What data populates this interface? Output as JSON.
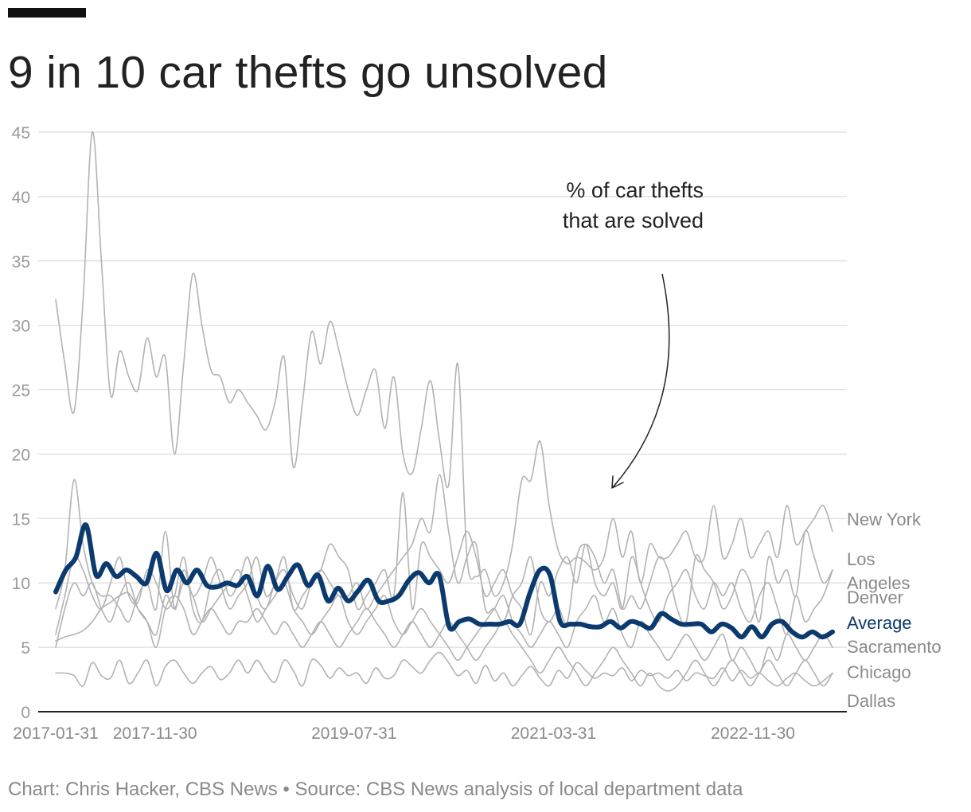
{
  "title": "9 in 10 car thefts go unsolved",
  "footer": "Chart: Chris Hacker, CBS News • Source: CBS News analysis of local department data",
  "chart_data": {
    "type": "line",
    "title": "9 in 10 car thefts go unsolved",
    "xlabel": "",
    "ylabel": "",
    "ylim": [
      0,
      45
    ],
    "yticks": [
      0,
      5,
      10,
      15,
      20,
      25,
      30,
      35,
      40,
      45
    ],
    "xticks": [
      "2017-01-31",
      "2017-11-30",
      "2019-07-31",
      "2021-03-31",
      "2022-11-30"
    ],
    "x_start": "2017-01-31",
    "x_end": "2023-07-31",
    "grid": true,
    "annotation": "% of car thefts that are solved",
    "colors": {
      "city": "#b3b3b3",
      "average": "#0b3a6e",
      "grid": "#dcdcdc",
      "axis": "#222222",
      "label": "#8a8a8a"
    },
    "series": [
      {
        "name": "New York",
        "values": [
          32,
          27,
          23.3,
          32,
          45,
          35,
          24.6,
          28,
          26,
          25,
          29,
          26,
          27.5,
          20,
          27,
          34,
          30,
          26.5,
          26,
          24,
          25,
          24,
          23,
          21.9,
          24,
          27.5,
          19,
          24,
          29.5,
          27,
          30.3,
          28,
          25,
          23,
          25,
          26.5,
          22,
          26,
          20,
          18.5,
          22,
          25.7,
          21,
          17.6,
          27,
          12,
          10.5,
          11,
          9,
          10,
          13,
          18,
          18,
          21,
          16,
          12.5,
          11.5,
          12,
          11.6,
          11,
          12,
          15,
          12,
          14,
          10,
          13,
          12,
          12,
          13,
          14,
          12,
          12,
          16,
          12,
          13,
          15,
          12,
          13,
          14,
          12,
          16,
          13,
          14,
          15,
          16,
          14
        ]
      },
      {
        "name": "Los Angeles",
        "values": [
          6,
          9,
          12,
          11,
          9,
          8,
          10,
          12,
          9,
          8.5,
          11,
          10,
          8,
          9,
          12,
          8,
          7,
          10,
          11,
          9,
          10,
          12,
          9,
          8,
          10,
          11,
          9,
          8,
          10,
          11,
          10,
          9,
          9,
          10,
          8,
          9,
          10,
          11,
          12,
          13,
          15,
          14,
          18.4,
          14,
          10,
          12,
          13,
          8,
          8,
          7,
          9,
          10,
          12,
          8,
          7,
          8,
          7,
          12,
          13,
          12,
          10,
          11,
          8,
          9,
          8,
          10,
          12,
          11,
          8,
          7,
          12,
          11,
          10,
          8,
          9,
          11,
          10,
          7,
          12,
          10,
          11,
          9,
          14,
          12,
          10,
          11
        ]
      },
      {
        "name": "Denver",
        "values": [
          8,
          11,
          18,
          13,
          10,
          9,
          9,
          8,
          7,
          9,
          10,
          8,
          14,
          8,
          11,
          9,
          10,
          12,
          10,
          8,
          9,
          10,
          12,
          9,
          10,
          12,
          8,
          9,
          10,
          11,
          13,
          12,
          11,
          8,
          9,
          10,
          11,
          9,
          17,
          8,
          13,
          12,
          11,
          10,
          12,
          14,
          12,
          9,
          10,
          11,
          9,
          8,
          6,
          10,
          9,
          11,
          12,
          10,
          13,
          10,
          9,
          10,
          8,
          12,
          10,
          8,
          7,
          9,
          10,
          11,
          9,
          8,
          10,
          9,
          10,
          8,
          7,
          9,
          10,
          8,
          6,
          9,
          7,
          8,
          9,
          11
        ]
      },
      {
        "name": "Sacramento",
        "values": [
          5,
          8,
          10,
          9,
          10,
          8,
          7,
          9,
          10,
          8,
          7,
          6,
          9,
          8,
          10,
          9,
          7,
          8,
          9,
          10,
          11,
          9,
          7,
          8,
          9,
          10,
          8,
          7,
          6,
          7,
          8,
          9,
          7,
          6,
          7,
          8,
          9,
          7,
          6,
          7,
          8,
          7,
          6,
          5,
          4,
          5,
          6,
          7,
          8,
          9,
          7,
          6,
          5,
          6,
          7,
          6,
          5,
          7,
          8,
          9,
          7,
          8,
          6,
          5,
          7,
          6,
          5,
          4,
          5,
          6,
          5,
          4,
          5,
          6,
          4,
          5,
          4,
          3,
          5,
          4,
          6,
          5,
          4,
          5,
          6,
          5
        ]
      },
      {
        "name": "Chicago",
        "values": [
          5.5,
          5.8,
          6,
          6.3,
          7,
          8,
          8.5,
          9,
          9.2,
          8,
          7,
          5,
          8,
          9,
          8,
          6,
          7,
          8,
          7,
          6,
          7,
          7,
          8,
          7,
          6,
          7,
          6,
          5,
          6,
          7,
          6,
          5,
          6,
          7,
          8,
          7,
          6,
          5,
          6,
          7,
          6,
          5,
          6,
          7,
          6,
          5,
          4,
          5,
          6,
          7,
          6,
          5,
          4,
          3,
          4,
          5,
          4,
          3,
          2,
          3,
          4,
          5,
          4,
          3,
          2,
          3,
          2,
          1.6,
          2,
          3,
          4,
          3,
          2,
          3,
          4,
          3,
          2,
          3,
          4,
          3,
          2,
          3,
          4,
          3,
          2,
          3
        ]
      },
      {
        "name": "Dallas",
        "values": [
          3,
          3,
          2.8,
          2,
          3.8,
          2.8,
          2.6,
          4,
          2.2,
          3,
          4,
          2,
          3.5,
          4,
          3,
          2.2,
          3,
          3.5,
          2.5,
          3,
          4,
          3,
          4,
          3,
          2.3,
          4,
          3.2,
          2,
          4,
          3.6,
          2.6,
          3.4,
          2.8,
          3,
          2.2,
          3.4,
          2.6,
          2.8,
          4,
          3.5,
          3,
          4,
          4.6,
          3.8,
          2.8,
          3.2,
          2.2,
          3.6,
          2.4,
          3,
          2,
          2.8,
          3.5,
          2.6,
          2,
          3.2,
          2.6,
          3.8,
          3.2,
          2.6,
          3,
          2.8,
          3.4,
          2.4,
          3.2,
          2.8,
          3,
          2.6,
          3.2,
          2.4,
          3,
          2.8,
          2.6,
          3.4,
          2.4,
          3.2,
          2.6,
          3,
          2.4,
          2,
          2.6,
          3,
          2.4,
          2,
          2.4,
          3
        ]
      },
      {
        "name": "Average",
        "values": [
          9.3,
          11,
          12,
          14.5,
          10.6,
          11.5,
          10.5,
          11,
          10.5,
          10,
          12.3,
          9.4,
          11,
          10,
          11,
          9.8,
          9.7,
          10,
          9.8,
          10.5,
          9,
          11.3,
          9.5,
          10.5,
          11.4,
          9.8,
          10.6,
          8.6,
          9.6,
          8.6,
          9.4,
          10.2,
          8.6,
          8.6,
          9,
          10.2,
          10.8,
          10,
          10.6,
          6.6,
          7,
          7.2,
          6.8,
          6.8,
          6.8,
          7,
          6.8,
          9.2,
          11,
          10.6,
          7,
          6.8,
          6.8,
          6.6,
          6.6,
          7,
          6.5,
          7,
          6.8,
          6.5,
          7.6,
          7.2,
          6.8,
          6.8,
          6.8,
          6.2,
          6.8,
          6.5,
          5.8,
          6.6,
          5.8,
          6.8,
          7,
          6.2,
          5.8,
          6.2,
          5.8,
          6.2
        ]
      }
    ]
  }
}
